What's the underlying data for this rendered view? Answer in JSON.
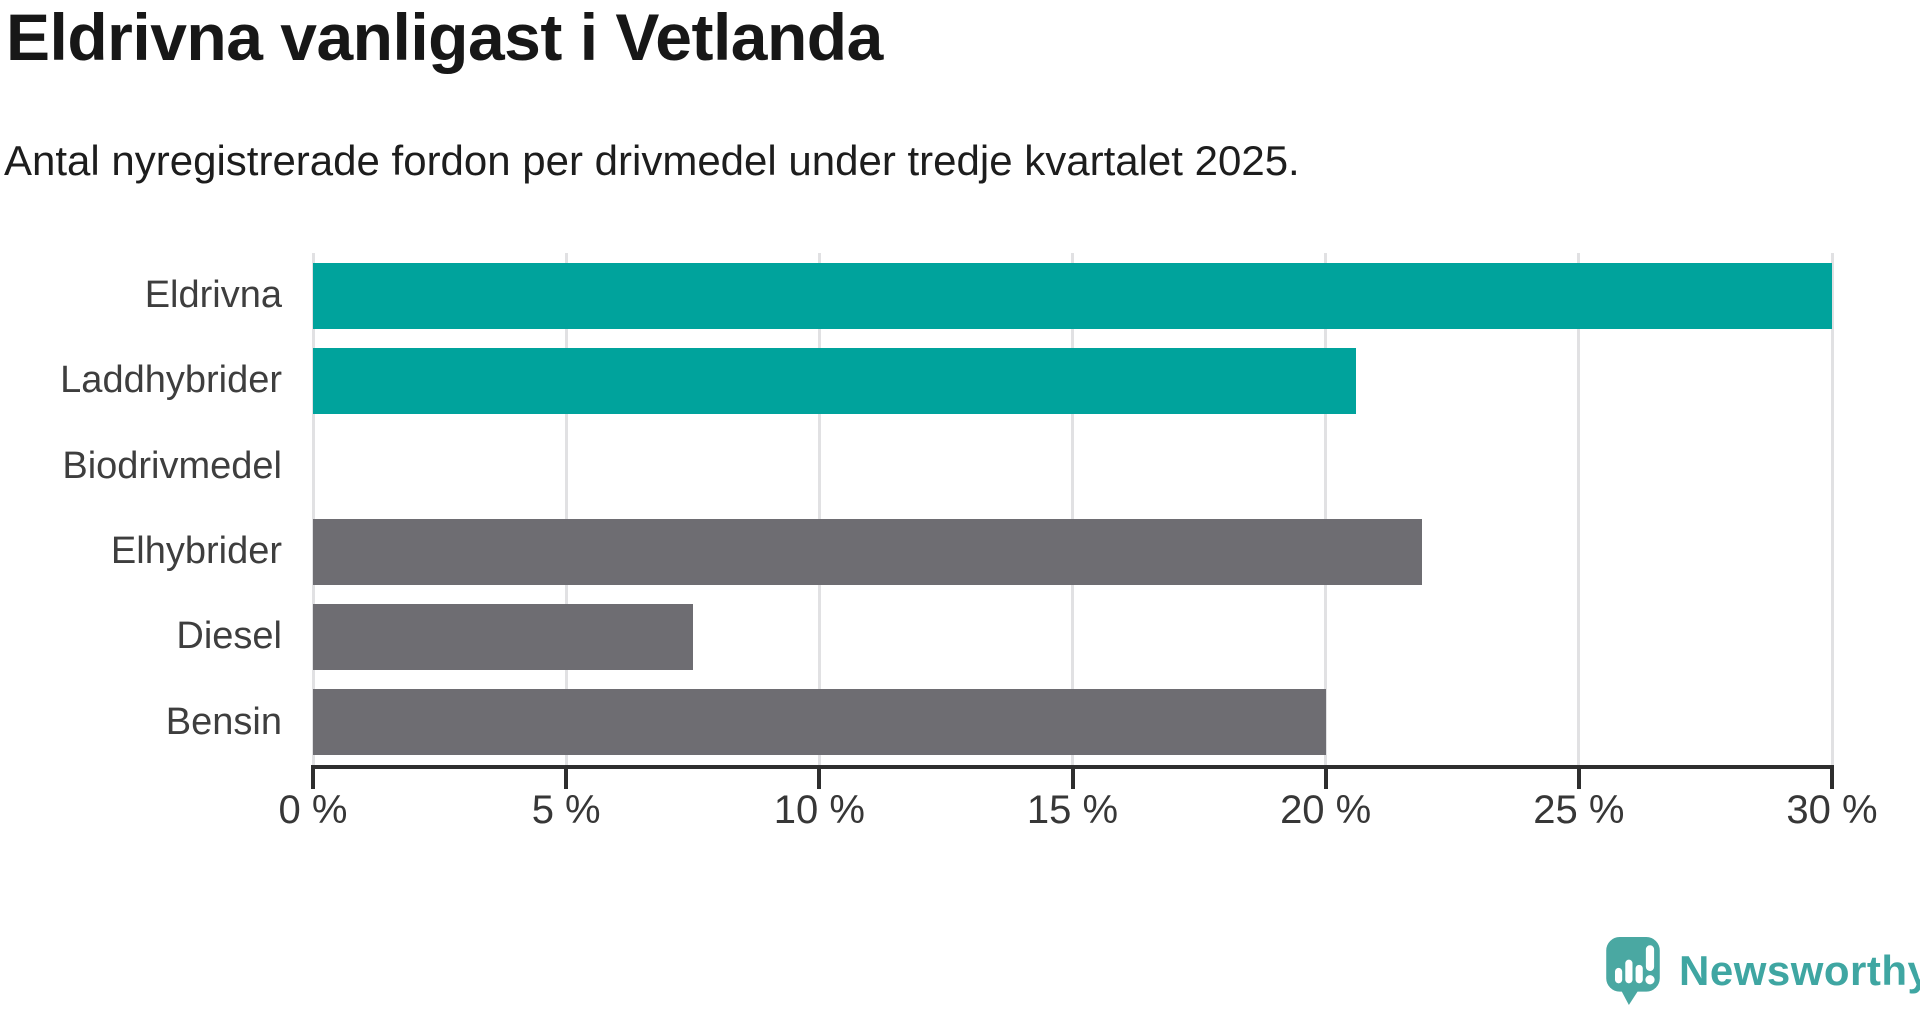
{
  "header": {
    "title": "Eldrivna vanligast i Vetlanda",
    "subtitle": "Antal nyregistrerade fordon per drivmedel under tredje kvartalet 2025."
  },
  "chart_data": {
    "type": "bar",
    "orientation": "horizontal",
    "title": "Eldrivna vanligast i Vetlanda",
    "subtitle": "Antal nyregistrerade fordon per drivmedel under tredje kvartalet 2025.",
    "categories": [
      "Eldrivna",
      "Laddhybrider",
      "Biodrivmedel",
      "Elhybrider",
      "Diesel",
      "Bensin"
    ],
    "values": [
      30,
      20.6,
      0,
      21.9,
      7.5,
      20
    ],
    "unit": "%",
    "xlabel": "",
    "ylabel": "",
    "xlim": [
      0,
      30
    ],
    "xticks": [
      0,
      5,
      10,
      15,
      20,
      25,
      30
    ],
    "xtick_labels": [
      "0 %",
      "5 %",
      "10 %",
      "15 %",
      "20 %",
      "25 %",
      "30 %"
    ],
    "bar_colors": [
      "#00a39c",
      "#00a39c",
      "#00a39c",
      "#6e6d72",
      "#6e6d72",
      "#6e6d72"
    ],
    "grid": true,
    "legend": false
  },
  "colors": {
    "bar_teal": "#00a39c",
    "bar_gray": "#6e6d72",
    "gridline": "#e1e1e3",
    "axis": "#2e2e2e",
    "background": "#ffffff",
    "logo": "#4aa8a2",
    "logo_text": "#3fa6a2"
  },
  "footer": {
    "brand": "Newsworthy",
    "logo_icon": "speech-bubble-bar-chart-icon"
  }
}
